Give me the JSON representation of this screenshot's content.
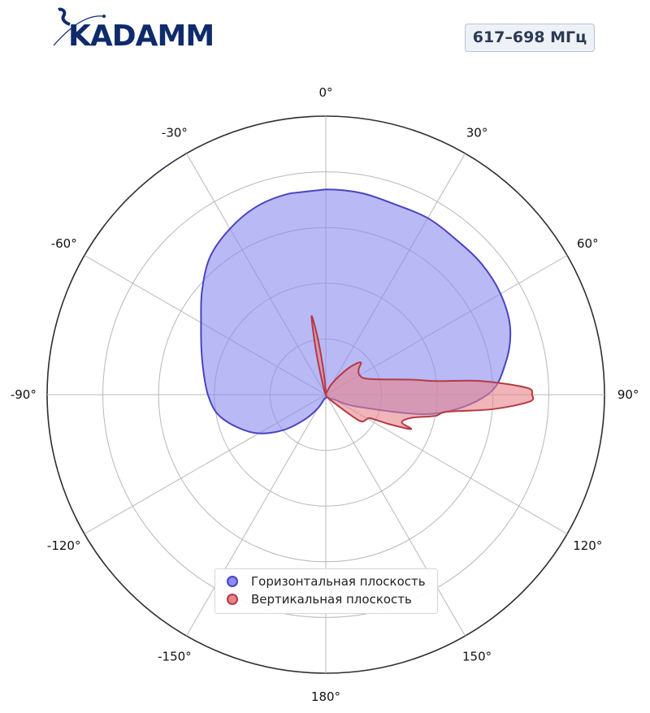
{
  "brand": {
    "logo_text": "KADAMM",
    "logo_color": "#0f2b6b"
  },
  "frequency_label": "617–698 МГц",
  "chart_data": {
    "type": "polar-area",
    "angular_ticks": [
      "0°",
      "30°",
      "60°",
      "90°",
      "120°",
      "150°",
      "180°",
      "-150°",
      "-120°",
      "-90°",
      "-60°",
      "-30°"
    ],
    "angular_tick_values_deg": [
      0,
      30,
      60,
      90,
      120,
      150,
      180,
      -150,
      -120,
      -90,
      -60,
      -30
    ],
    "radial_range": [
      0,
      1
    ],
    "radial_gridlines": [
      0.2,
      0.4,
      0.6,
      0.8,
      1.0
    ],
    "grid": true,
    "legend_placement": "bottom-center",
    "series": [
      {
        "name": "Горизонтальная плоскость",
        "fill": "#8b8bf0",
        "stroke": "#4a44c0",
        "points": [
          [
            0,
            0.737
          ],
          [
            10,
            0.735
          ],
          [
            20,
            0.727
          ],
          [
            30,
            0.732
          ],
          [
            40,
            0.727
          ],
          [
            50,
            0.73
          ],
          [
            60,
            0.724
          ],
          [
            70,
            0.704
          ],
          [
            80,
            0.655
          ],
          [
            90,
            0.58
          ],
          [
            100,
            0.394
          ],
          [
            110,
            0.13
          ],
          [
            120,
            0.035
          ],
          [
            140,
            0.016
          ],
          [
            160,
            0.01
          ],
          [
            180,
            0.012
          ],
          [
            200,
            0.018
          ],
          [
            210,
            0.055
          ],
          [
            220,
            0.115
          ],
          [
            230,
            0.197
          ],
          [
            240,
            0.278
          ],
          [
            250,
            0.34
          ],
          [
            260,
            0.395
          ],
          [
            270,
            0.423
          ],
          [
            280,
            0.445
          ],
          [
            290,
            0.475
          ],
          [
            300,
            0.517
          ],
          [
            310,
            0.58
          ],
          [
            320,
            0.646
          ],
          [
            330,
            0.688
          ],
          [
            340,
            0.72
          ],
          [
            350,
            0.734
          ]
        ]
      },
      {
        "name": "Вертикальная плоскость",
        "fill": "#e8838a",
        "stroke": "#b53a45",
        "points": [
          [
            0,
            0.0
          ],
          [
            20,
            0.01
          ],
          [
            30,
            0.05
          ],
          [
            40,
            0.12
          ],
          [
            45,
            0.16
          ],
          [
            48,
            0.17
          ],
          [
            52,
            0.15
          ],
          [
            60,
            0.14
          ],
          [
            70,
            0.165
          ],
          [
            80,
            0.31
          ],
          [
            83,
            0.4
          ],
          [
            85,
            0.56
          ],
          [
            88,
            0.72
          ],
          [
            90,
            0.74
          ],
          [
            92,
            0.73
          ],
          [
            95,
            0.6
          ],
          [
            98,
            0.44
          ],
          [
            101,
            0.4
          ],
          [
            105,
            0.32
          ],
          [
            110,
            0.29
          ],
          [
            112,
            0.33
          ],
          [
            115,
            0.25
          ],
          [
            118,
            0.18
          ],
          [
            122,
            0.17
          ],
          [
            128,
            0.15
          ],
          [
            135,
            0.04
          ],
          [
            150,
            0.01
          ],
          [
            180,
            0.0
          ],
          [
            340,
            0.0
          ],
          [
            343,
            0.03
          ],
          [
            347,
            0.14
          ],
          [
            349,
            0.25
          ],
          [
            350,
            0.285
          ],
          [
            352,
            0.2
          ],
          [
            354,
            0.1
          ],
          [
            357,
            0.03
          ],
          [
            360,
            0.0
          ]
        ]
      }
    ]
  }
}
